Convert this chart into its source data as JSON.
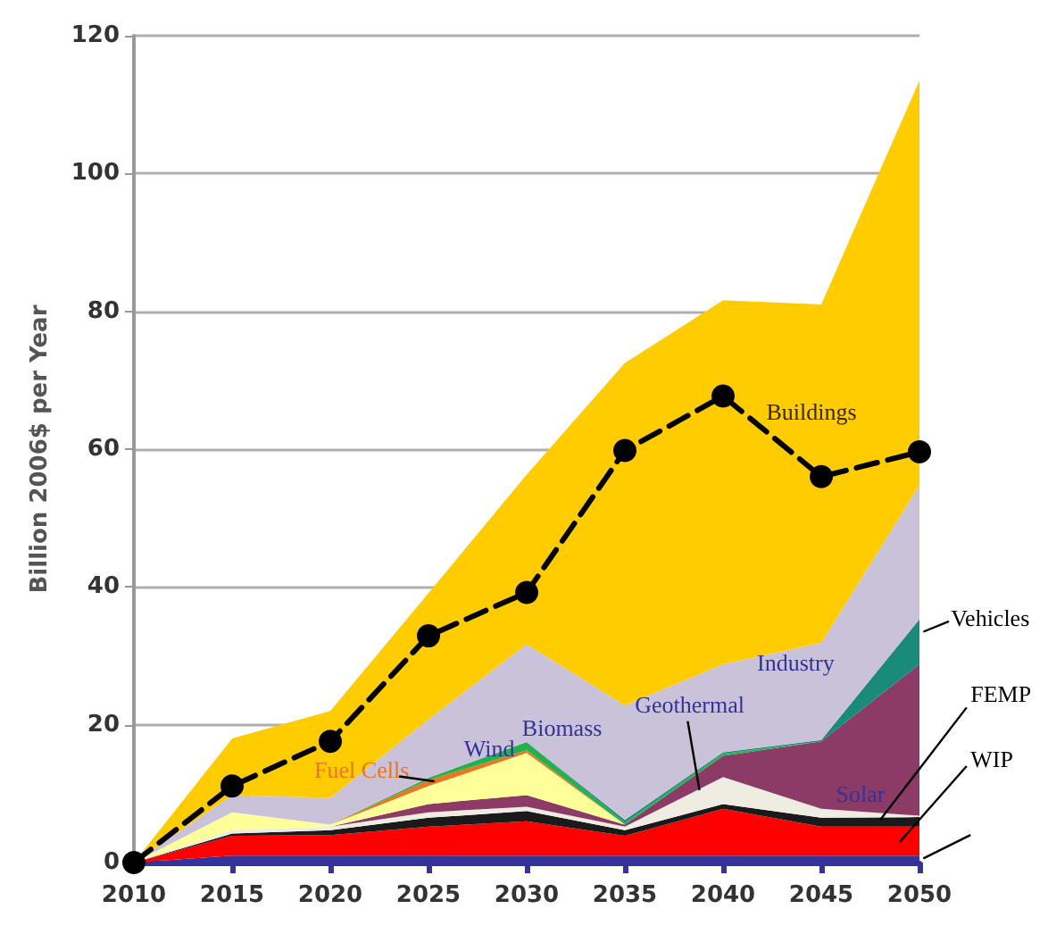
{
  "chart_data": {
    "type": "area",
    "stacked": true,
    "ylabel": "Billion 2006$ per Year",
    "x": [
      2010,
      2015,
      2020,
      2025,
      2030,
      2035,
      2040,
      2045,
      2050
    ],
    "xlim": [
      2010,
      2050
    ],
    "xticks": [
      2010,
      2015,
      2020,
      2025,
      2030,
      2035,
      2040,
      2045,
      2050
    ],
    "ylim": [
      0,
      120
    ],
    "yticks": [
      0,
      20,
      40,
      60,
      80,
      100,
      120
    ],
    "grid": "y",
    "series": [
      {
        "color": "#33339a",
        "values": [
          0,
          1,
          1,
          1,
          1,
          1,
          1,
          1,
          1
        ]
      },
      {
        "name": "WIP",
        "color": "#ff0000",
        "values": [
          0,
          2.9,
          3,
          4.2,
          5,
          2.9,
          6.8,
          4.2,
          4.2
        ]
      },
      {
        "name": "FEMP",
        "color": "#1a1a1a",
        "values": [
          0,
          0.3,
          0.7,
          1.3,
          1.5,
          0.8,
          0.7,
          1.3,
          1.4
        ]
      },
      {
        "name": "Geothermal",
        "color": "#efede2",
        "values": [
          0,
          0.5,
          0.5,
          0.8,
          0.6,
          0.5,
          3.9,
          1.3,
          0.2
        ]
      },
      {
        "name": "Solar",
        "color": "#8c3a66",
        "values": [
          0,
          0,
          0,
          1.2,
          1.7,
          0.3,
          3.1,
          9.8,
          22
        ]
      },
      {
        "name": "Wind",
        "color": "#ffff99",
        "values": [
          0,
          2.6,
          0.3,
          2.6,
          6.1,
          0,
          null,
          null,
          null
        ]
      },
      {
        "name": "Fuel Cells",
        "color": "#e87722",
        "values": [
          null,
          null,
          0,
          0.9,
          0.4,
          0,
          null,
          null,
          null
        ]
      },
      {
        "name": "Biomass",
        "color": "#22b14c",
        "values": [
          null,
          null,
          0,
          0.3,
          1.2,
          0.3,
          0.3,
          0,
          null
        ]
      },
      {
        "name": "Vehicles",
        "color": "#1a8a7a",
        "values": [
          null,
          null,
          null,
          null,
          0,
          0.4,
          0.2,
          0.2,
          6.5
        ]
      },
      {
        "name": "Industry",
        "color": "#c9c2d9",
        "values": [
          0,
          2.5,
          3.9,
          8.5,
          14.2,
          16.6,
          12.8,
          14.1,
          19.5
        ]
      },
      {
        "name": "Buildings",
        "color": "#ffcc00",
        "values": [
          0,
          8.2,
          12.6,
          18.3,
          24.6,
          49.7,
          52.8,
          49.1,
          58.7
        ]
      },
      {
        "type": "line",
        "color": "#000000",
        "marker": "circle",
        "line_style": "dashed",
        "values": [
          0,
          11.1,
          17.6,
          32.9,
          39.2,
          59.8,
          67.7,
          56,
          59.6
        ]
      }
    ]
  }
}
